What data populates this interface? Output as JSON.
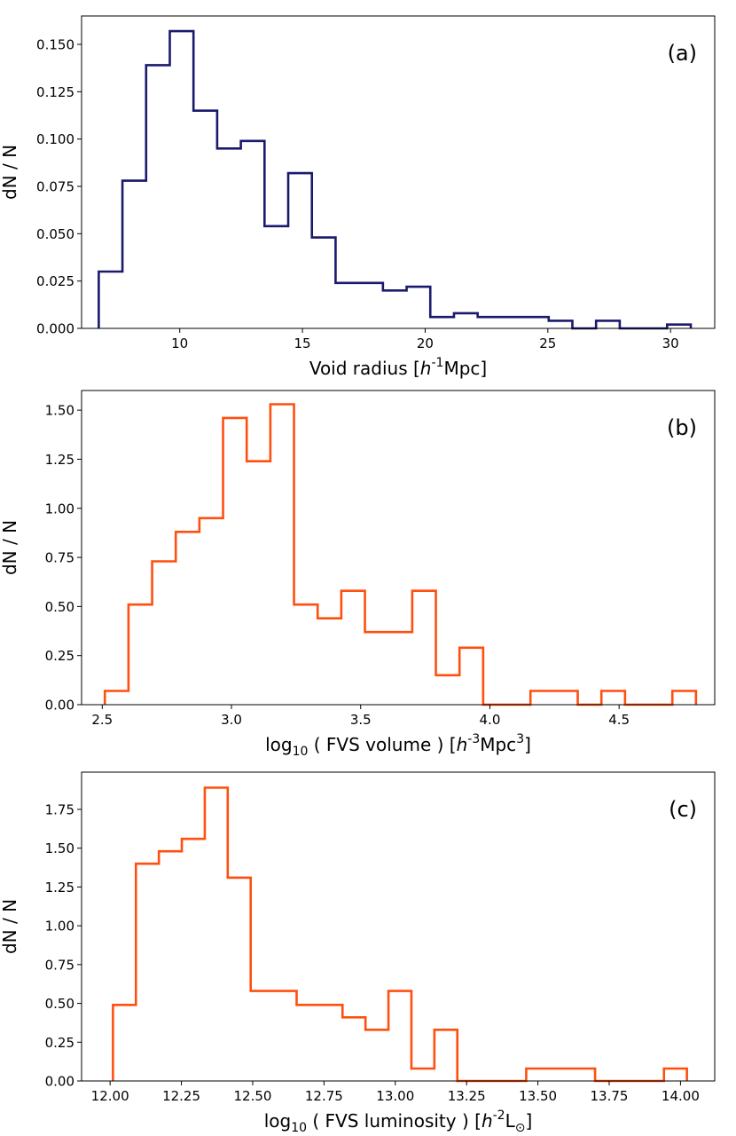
{
  "chart_data": [
    {
      "type": "histogram",
      "panel_label": "(a)",
      "color": "#1a1a6e",
      "xlabel": {
        "pre": "Void radius [",
        "italic": "h",
        "sup": "-1",
        "post": "Mpc]"
      },
      "ylabel": "dN / N",
      "xlim": [
        6.0,
        31.8
      ],
      "ylim": [
        0.0,
        0.165
      ],
      "x_ticks": [
        10,
        15,
        20,
        25,
        30
      ],
      "x_tick_labels": [
        "10",
        "15",
        "20",
        "25",
        "30"
      ],
      "y_ticks": [
        0.0,
        0.025,
        0.05,
        0.075,
        0.1,
        0.125,
        0.15
      ],
      "y_tick_labels": [
        "0.000",
        "0.025",
        "0.050",
        "0.075",
        "0.100",
        "0.125",
        "0.150"
      ],
      "bin_start": 6.7,
      "bin_width": 0.965,
      "values": [
        0.03,
        0.078,
        0.139,
        0.157,
        0.115,
        0.095,
        0.099,
        0.054,
        0.082,
        0.048,
        0.024,
        0.024,
        0.02,
        0.022,
        0.006,
        0.008,
        0.006,
        0.006,
        0.006,
        0.004,
        0.0,
        0.004,
        0.0,
        0.0,
        0.002
      ]
    },
    {
      "type": "histogram",
      "panel_label": "(b)",
      "color": "#ff4f0f",
      "xlabel": {
        "pre": "log",
        "sub": "10",
        "mid": " ( FVS volume ) [",
        "italic": "h",
        "sup": "-3",
        "post2": "Mpc",
        "sup2": "3",
        "post": "]"
      },
      "ylabel": "dN / N",
      "xlim": [
        2.42,
        4.87
      ],
      "ylim": [
        0.0,
        1.6
      ],
      "x_ticks": [
        2.5,
        3.0,
        3.5,
        4.0,
        4.5
      ],
      "x_tick_labels": [
        "2.5",
        "3.0",
        "3.5",
        "4.0",
        "4.5"
      ],
      "y_ticks": [
        0.0,
        0.25,
        0.5,
        0.75,
        1.0,
        1.25,
        1.5
      ],
      "y_tick_labels": [
        "0.00",
        "0.25",
        "0.50",
        "0.75",
        "1.00",
        "1.25",
        "1.50"
      ],
      "bin_start": 2.51,
      "bin_width": 0.0915,
      "values": [
        0.07,
        0.51,
        0.73,
        0.88,
        0.95,
        1.46,
        1.24,
        1.53,
        0.51,
        0.44,
        0.58,
        0.37,
        0.37,
        0.58,
        0.15,
        0.29,
        0.0,
        0.0,
        0.07,
        0.07,
        0.0,
        0.07,
        0.0,
        0.0,
        0.07
      ]
    },
    {
      "type": "histogram",
      "panel_label": "(c)",
      "color": "#ff4f0f",
      "xlabel": {
        "pre": "log",
        "sub": "10",
        "mid": " ( FVS luminosity ) [",
        "italic": "h",
        "sup": "-2",
        "post2": "L",
        "sub2": "⊙",
        "post": "]"
      },
      "ylabel": "dN / N",
      "xlim": [
        11.9,
        14.12
      ],
      "ylim": [
        0.0,
        1.99
      ],
      "x_ticks": [
        12.0,
        12.25,
        12.5,
        12.75,
        13.0,
        13.25,
        13.5,
        13.75,
        14.0
      ],
      "x_tick_labels": [
        "12.00",
        "12.25",
        "12.50",
        "12.75",
        "13.00",
        "13.25",
        "13.50",
        "13.75",
        "14.00"
      ],
      "y_ticks": [
        0.0,
        0.25,
        0.5,
        0.75,
        1.0,
        1.25,
        1.5,
        1.75
      ],
      "y_tick_labels": [
        "0.00",
        "0.25",
        "0.50",
        "0.75",
        "1.00",
        "1.25",
        "1.50",
        "1.75"
      ],
      "bin_start": 12.01,
      "bin_width": 0.0805,
      "values": [
        0.49,
        1.4,
        1.48,
        1.56,
        1.89,
        1.31,
        0.58,
        0.58,
        0.49,
        0.49,
        0.41,
        0.33,
        0.58,
        0.08,
        0.33,
        0.0,
        0.0,
        0.0,
        0.08,
        0.08,
        0.08,
        0.0,
        0.0,
        0.0,
        0.08
      ]
    }
  ]
}
